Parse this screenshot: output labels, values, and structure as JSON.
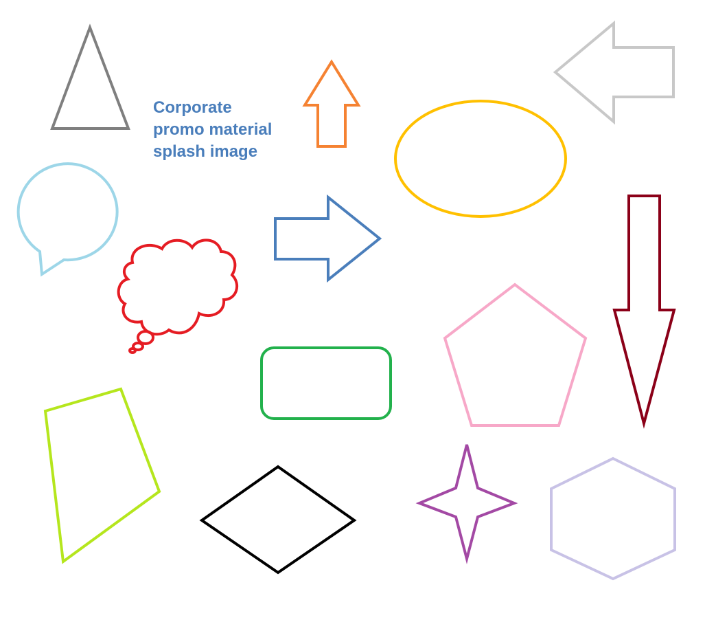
{
  "caption": {
    "lines": [
      "Corporate",
      "promo material",
      "splash image"
    ],
    "color": "#4a7ebb"
  },
  "shapes": [
    {
      "name": "triangle",
      "color": "#7f7f7f"
    },
    {
      "name": "arrow-up",
      "color": "#f58232"
    },
    {
      "name": "arrow-left",
      "color": "#c8c8c8"
    },
    {
      "name": "ellipse",
      "color": "#ffc000"
    },
    {
      "name": "speech-bubble",
      "color": "#9dd6e8"
    },
    {
      "name": "arrow-right",
      "color": "#4a7ebb"
    },
    {
      "name": "arrow-down",
      "color": "#8b0018"
    },
    {
      "name": "thought-cloud",
      "color": "#e51c23"
    },
    {
      "name": "rounded-rectangle",
      "color": "#22b14c"
    },
    {
      "name": "pentagon",
      "color": "#f7a8c8"
    },
    {
      "name": "quadrilateral",
      "color": "#b5e61d"
    },
    {
      "name": "diamond",
      "color": "#000000"
    },
    {
      "name": "four-point-star",
      "color": "#a349a4"
    },
    {
      "name": "hexagon",
      "color": "#c8c2e6"
    }
  ]
}
